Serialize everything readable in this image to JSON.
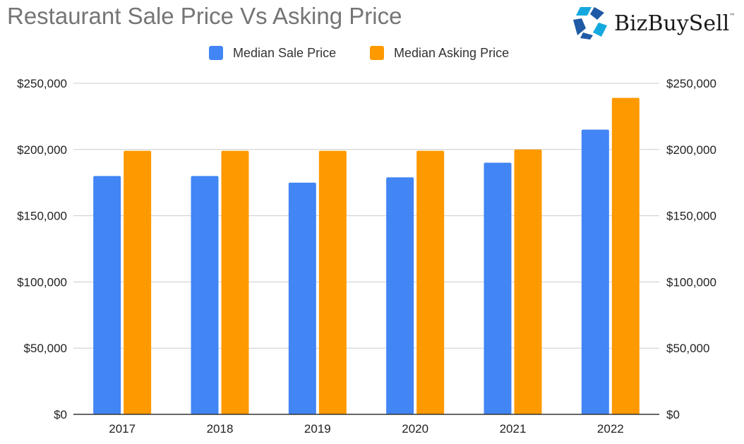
{
  "brand": {
    "name": "BizBuySell",
    "tm": "™",
    "logo_icon": "star-mark-icon",
    "colors": [
      "#13a9de",
      "#1f5aa6"
    ]
  },
  "colors": {
    "sale": "#4285f4",
    "asking": "#ff9900",
    "grid": "#cccccc",
    "axis": "#333333"
  },
  "chart_data": {
    "type": "bar",
    "title": "Restaurant Sale Price Vs Asking Price",
    "categories": [
      "2017",
      "2018",
      "2019",
      "2020",
      "2021",
      "2022"
    ],
    "series": [
      {
        "name": "Median Sale Price",
        "values": [
          180000,
          180000,
          175000,
          179000,
          190000,
          215000
        ]
      },
      {
        "name": "Median Asking Price",
        "values": [
          199000,
          199000,
          199000,
          199000,
          200000,
          239000
        ]
      }
    ],
    "ylim": [
      0,
      250000
    ],
    "yticks": [
      "$0",
      "$50,000",
      "$100,000",
      "$150,000",
      "$200,000",
      "$250,000"
    ],
    "grid": true,
    "legend": "top-center",
    "dual_axis_mirrored": true
  }
}
